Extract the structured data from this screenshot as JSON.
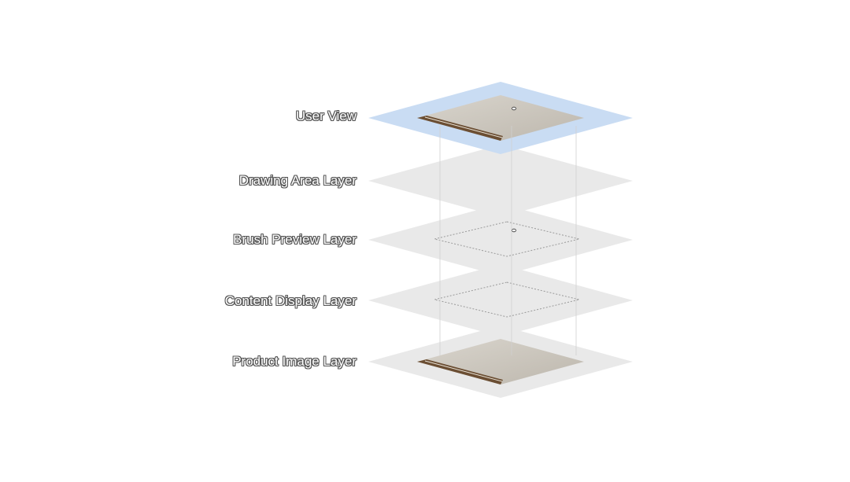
{
  "diagram": {
    "layers": [
      {
        "id": "user-view",
        "label": "User View",
        "style": "highlight",
        "content": [
          "image",
          "cursor"
        ]
      },
      {
        "id": "drawing-area",
        "label": "Drawing Area Layer",
        "style": "plain",
        "content": []
      },
      {
        "id": "brush-preview",
        "label": "Brush Preview Layer",
        "style": "plain",
        "content": [
          "dashed-outline",
          "cursor"
        ]
      },
      {
        "id": "content-display",
        "label": "Content Display Layer",
        "style": "plain",
        "content": [
          "dashed-outline"
        ]
      },
      {
        "id": "product-image",
        "label": "Product Image Layer",
        "style": "plain",
        "content": [
          "image"
        ]
      }
    ],
    "colors": {
      "highlight_fill": "#c9dcf3",
      "plain_fill": "#e9e9e9",
      "image_fill": "#cfcac1",
      "image_strip": "#6b4e33",
      "guide_line": "#d0d0d0",
      "dashed_outline": "#9a9a9a"
    }
  }
}
